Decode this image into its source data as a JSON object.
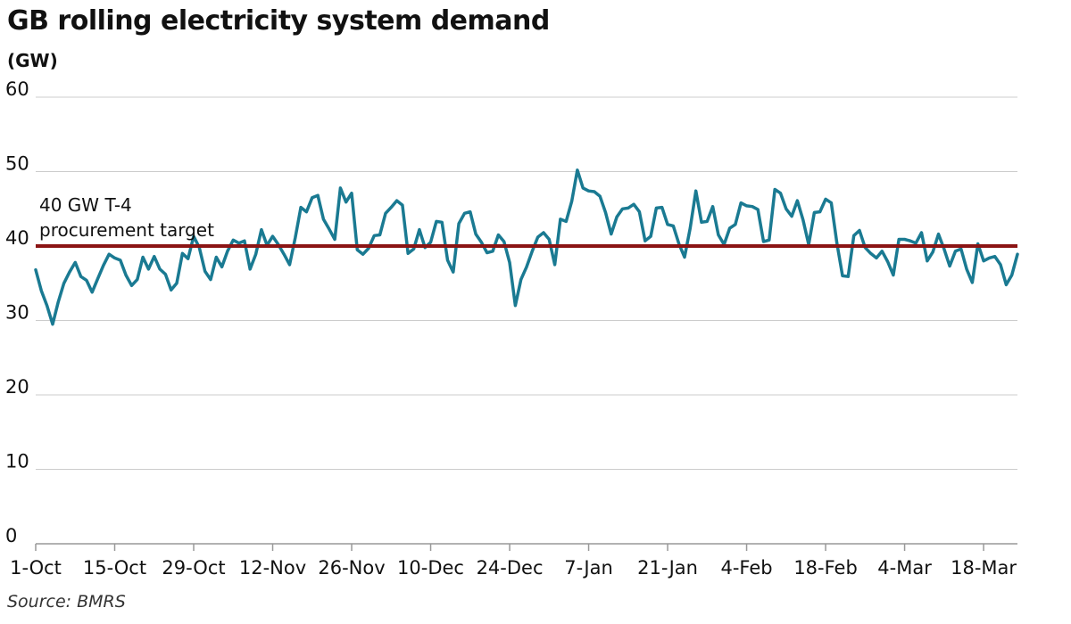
{
  "title": "GB rolling electricity system demand",
  "unit": "(GW)",
  "source": "Source: BMRS",
  "colors": {
    "demand_line": "#1a7a92",
    "target_line": "#8b1414",
    "grid": "#cccccc",
    "axis": "#999999"
  },
  "chart_data": {
    "type": "line",
    "title": "GB rolling electricity system demand",
    "ylabel": "(GW)",
    "xlabel": "",
    "ylim": [
      0,
      60
    ],
    "yticks": [
      0,
      10,
      20,
      30,
      40,
      50,
      60
    ],
    "x_tick_labels": [
      "1-Oct",
      "15-Oct",
      "29-Oct",
      "12-Nov",
      "26-Nov",
      "10-Dec",
      "24-Dec",
      "7-Jan",
      "21-Jan",
      "4-Feb",
      "18-Feb",
      "4-Mar",
      "18-Mar"
    ],
    "x_start": "1-Oct",
    "x_end": "22-Mar",
    "grid": true,
    "reference_line": {
      "value": 40,
      "label_line1": "40 GW T-4",
      "label_line2": "procurement target"
    },
    "series": [
      {
        "values": [
          36.8,
          34,
          32,
          29.5,
          32.5,
          35,
          36.5,
          37.8,
          35.9,
          35.4,
          33.8,
          35.6,
          37.4,
          38.9,
          38.4,
          38.1,
          36.1,
          34.7,
          35.5,
          38.5,
          36.9,
          38.6,
          36.9,
          36.2,
          34.1,
          35,
          39,
          38.3,
          41.3,
          39.8,
          36.6,
          35.5,
          38.5,
          37.2,
          39.3,
          40.8,
          40.4,
          40.7,
          36.9,
          38.9,
          42.2,
          40.1,
          41.3,
          40.2,
          38.9,
          37.5,
          41.1,
          45.2,
          44.6,
          46.5,
          46.8,
          43.6,
          42.3,
          40.9,
          47.8,
          45.9,
          47.1,
          39.5,
          38.9,
          39.7,
          41.4,
          41.5,
          44.4,
          45.2,
          46.1,
          45.5,
          39,
          39.6,
          42.2,
          39.8,
          40.5,
          43.3,
          43.2,
          38.1,
          36.5,
          43,
          44.4,
          44.6,
          41.6,
          40.5,
          39.1,
          39.3,
          41.5,
          40.6,
          37.8,
          32,
          35.5,
          37.2,
          39.3,
          41.2,
          41.8,
          40.9,
          37.5,
          43.6,
          43.3,
          46,
          50.2,
          47.8,
          47.4,
          47.3,
          46.7,
          44.5,
          41.6,
          43.9,
          45,
          45.1,
          45.6,
          44.6,
          40.7,
          41.3,
          45.1,
          45.2,
          42.9,
          42.7,
          40.3,
          38.5,
          42.4,
          47.4,
          43.2,
          43.3,
          45.3,
          41.5,
          40.2,
          42.4,
          42.9,
          45.8,
          45.4,
          45.3,
          44.9,
          40.6,
          40.8,
          47.6,
          47.1,
          45,
          44,
          46.1,
          43.5,
          40.2,
          44.5,
          44.6,
          46.3,
          45.8,
          40.4,
          36,
          35.9,
          41.4,
          42.1,
          39.8,
          39,
          38.4,
          39.3,
          37.9,
          36.1,
          40.9,
          40.9,
          40.7,
          40.4,
          41.8,
          38,
          39.2,
          41.6,
          39.6,
          37.3,
          39.3,
          39.6,
          36.9,
          35.1,
          40.3,
          38,
          38.4,
          38.6,
          37.5,
          34.8,
          36.1,
          38.9
        ]
      }
    ]
  }
}
